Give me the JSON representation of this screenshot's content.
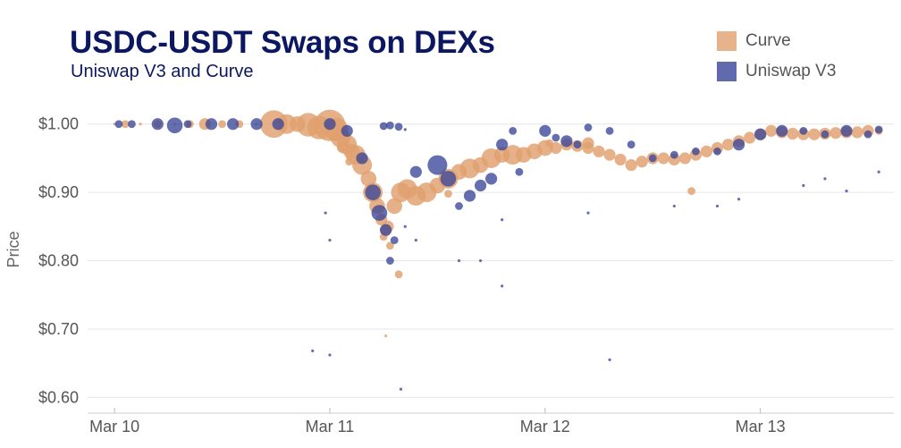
{
  "chart_data": {
    "type": "scatter",
    "title": "USDC-USDT Swaps on DEXs",
    "subtitle": "Uniswap V3 and Curve",
    "xlabel": "",
    "ylabel": "Price",
    "x_ticks": [
      "Mar 10",
      "Mar 11",
      "Mar 12",
      "Mar 13"
    ],
    "x_tick_days": [
      0,
      1,
      2,
      3
    ],
    "xlim_days": [
      -0.15,
      3.62
    ],
    "y_ticks": [
      1.0,
      0.9,
      0.8,
      0.7,
      0.6
    ],
    "y_tick_labels": [
      "$1.00",
      "$0.90",
      "$0.80",
      "$0.70",
      "$0.60"
    ],
    "ylim": [
      0.59,
      1.035
    ],
    "legend_position": "top-right",
    "grid": true,
    "series": [
      {
        "name": "Curve",
        "color": "#e0a06e",
        "points": [
          [
            0.0,
            1.0,
            1
          ],
          [
            0.05,
            1.0,
            2
          ],
          [
            0.12,
            1.0,
            1
          ],
          [
            0.2,
            1.0,
            2
          ],
          [
            0.28,
            1.0,
            1
          ],
          [
            0.35,
            1.0,
            2
          ],
          [
            0.42,
            1.0,
            3
          ],
          [
            0.5,
            1.0,
            2
          ],
          [
            0.58,
            1.0,
            2
          ],
          [
            0.66,
            1.0,
            1
          ],
          [
            0.74,
            1.0,
            7
          ],
          [
            0.8,
            1.0,
            5
          ],
          [
            0.85,
            1.0,
            4
          ],
          [
            0.9,
            0.999,
            6
          ],
          [
            0.95,
            0.995,
            6
          ],
          [
            1.0,
            0.998,
            8
          ],
          [
            1.03,
            0.992,
            6
          ],
          [
            1.05,
            0.98,
            5
          ],
          [
            1.08,
            0.97,
            5
          ],
          [
            1.1,
            0.96,
            4
          ],
          [
            1.12,
            0.955,
            5
          ],
          [
            1.15,
            0.94,
            5
          ],
          [
            1.18,
            0.92,
            4
          ],
          [
            1.2,
            0.9,
            5
          ],
          [
            1.22,
            0.88,
            4
          ],
          [
            1.24,
            0.86,
            3
          ],
          [
            1.26,
            0.845,
            3
          ],
          [
            1.28,
            0.822,
            2
          ],
          [
            1.3,
            0.88,
            4
          ],
          [
            1.33,
            0.9,
            5
          ],
          [
            1.36,
            0.905,
            5
          ],
          [
            1.4,
            0.895,
            5
          ],
          [
            1.45,
            0.9,
            5
          ],
          [
            1.5,
            0.91,
            4
          ],
          [
            1.55,
            0.92,
            5
          ],
          [
            1.6,
            0.93,
            4
          ],
          [
            1.65,
            0.935,
            5
          ],
          [
            1.7,
            0.94,
            4
          ],
          [
            1.75,
            0.95,
            5
          ],
          [
            1.8,
            0.955,
            4
          ],
          [
            1.85,
            0.955,
            5
          ],
          [
            1.9,
            0.955,
            4
          ],
          [
            1.95,
            0.96,
            4
          ],
          [
            2.0,
            0.965,
            4
          ],
          [
            2.05,
            0.965,
            3
          ],
          [
            2.1,
            0.97,
            3
          ],
          [
            2.15,
            0.968,
            3
          ],
          [
            2.2,
            0.965,
            3
          ],
          [
            2.25,
            0.96,
            3
          ],
          [
            2.3,
            0.955,
            3
          ],
          [
            2.35,
            0.948,
            3
          ],
          [
            2.4,
            0.94,
            3
          ],
          [
            2.45,
            0.945,
            3
          ],
          [
            2.5,
            0.95,
            3
          ],
          [
            2.55,
            0.95,
            3
          ],
          [
            2.6,
            0.948,
            3
          ],
          [
            2.65,
            0.95,
            3
          ],
          [
            2.7,
            0.955,
            3
          ],
          [
            2.75,
            0.96,
            3
          ],
          [
            2.8,
            0.965,
            3
          ],
          [
            2.85,
            0.97,
            3
          ],
          [
            2.9,
            0.975,
            3
          ],
          [
            2.95,
            0.98,
            3
          ],
          [
            3.0,
            0.985,
            3
          ],
          [
            3.05,
            0.99,
            3
          ],
          [
            3.1,
            0.988,
            3
          ],
          [
            3.15,
            0.986,
            3
          ],
          [
            3.2,
            0.985,
            3
          ],
          [
            3.25,
            0.985,
            3
          ],
          [
            3.3,
            0.986,
            3
          ],
          [
            3.35,
            0.987,
            3
          ],
          [
            3.4,
            0.988,
            3
          ],
          [
            3.45,
            0.988,
            3
          ],
          [
            3.5,
            0.99,
            3
          ],
          [
            3.55,
            0.99,
            2
          ],
          [
            1.32,
            0.78,
            2
          ],
          [
            1.27,
            0.85,
            3
          ],
          [
            1.25,
            0.835,
            2
          ],
          [
            2.68,
            0.902,
            2
          ],
          [
            1.06,
            0.966,
            3
          ],
          [
            1.09,
            0.945,
            2
          ],
          [
            1.55,
            0.898,
            2
          ],
          [
            2.02,
            0.972,
            2
          ],
          [
            2.2,
            0.972,
            3
          ],
          [
            1.26,
            0.69,
            1
          ]
        ]
      },
      {
        "name": "Uniswap V3",
        "color": "#3a4597",
        "points": [
          [
            0.02,
            1.0,
            2
          ],
          [
            0.08,
            1.0,
            2
          ],
          [
            0.2,
            1.0,
            3
          ],
          [
            0.28,
            0.998,
            4
          ],
          [
            0.34,
            1.0,
            2
          ],
          [
            0.45,
            1.0,
            3
          ],
          [
            0.55,
            1.0,
            3
          ],
          [
            0.66,
            1.0,
            3
          ],
          [
            0.76,
            1.0,
            3
          ],
          [
            1.0,
            1.0,
            3
          ],
          [
            1.08,
            0.99,
            3
          ],
          [
            1.15,
            0.95,
            3
          ],
          [
            1.2,
            0.9,
            4
          ],
          [
            1.23,
            0.87,
            4
          ],
          [
            1.26,
            0.845,
            3
          ],
          [
            1.28,
            0.8,
            2
          ],
          [
            1.3,
            0.83,
            2
          ],
          [
            1.25,
            0.997,
            2
          ],
          [
            1.28,
            0.998,
            2
          ],
          [
            1.32,
            0.996,
            2
          ],
          [
            1.35,
            0.992,
            1
          ],
          [
            1.4,
            0.93,
            3
          ],
          [
            1.5,
            0.94,
            5
          ],
          [
            1.55,
            0.92,
            4
          ],
          [
            1.6,
            0.88,
            2
          ],
          [
            1.65,
            0.895,
            3
          ],
          [
            1.7,
            0.91,
            3
          ],
          [
            1.75,
            0.92,
            3
          ],
          [
            1.8,
            0.97,
            3
          ],
          [
            1.85,
            0.99,
            2
          ],
          [
            1.88,
            0.93,
            2
          ],
          [
            2.0,
            0.99,
            3
          ],
          [
            2.05,
            0.98,
            2
          ],
          [
            2.1,
            0.975,
            3
          ],
          [
            2.15,
            0.97,
            2
          ],
          [
            2.2,
            0.995,
            2
          ],
          [
            2.3,
            0.99,
            2
          ],
          [
            2.4,
            0.97,
            2
          ],
          [
            2.5,
            0.95,
            2
          ],
          [
            2.6,
            0.955,
            2
          ],
          [
            2.7,
            0.96,
            2
          ],
          [
            2.8,
            0.96,
            2
          ],
          [
            2.9,
            0.97,
            3
          ],
          [
            3.0,
            0.985,
            3
          ],
          [
            3.1,
            0.99,
            3
          ],
          [
            3.2,
            0.99,
            2
          ],
          [
            3.3,
            0.985,
            2
          ],
          [
            3.4,
            0.99,
            3
          ],
          [
            3.5,
            0.985,
            2
          ],
          [
            3.55,
            0.992,
            2
          ],
          [
            1.35,
            0.85,
            1
          ],
          [
            1.4,
            0.83,
            1
          ],
          [
            1.6,
            0.8,
            1
          ],
          [
            1.7,
            0.8,
            1
          ],
          [
            1.8,
            0.763,
            1
          ],
          [
            2.3,
            0.655,
            1
          ],
          [
            1.33,
            0.612,
            1
          ],
          [
            0.92,
            0.668,
            1
          ],
          [
            1.0,
            0.662,
            1
          ],
          [
            1.0,
            0.83,
            1
          ],
          [
            0.98,
            0.87,
            1
          ],
          [
            1.8,
            0.86,
            1
          ],
          [
            2.2,
            0.87,
            1
          ],
          [
            2.8,
            0.88,
            1
          ],
          [
            3.2,
            0.91,
            1
          ],
          [
            3.4,
            0.902,
            1
          ],
          [
            3.55,
            0.93,
            1
          ],
          [
            2.9,
            0.89,
            1
          ],
          [
            3.3,
            0.92,
            1
          ],
          [
            2.6,
            0.88,
            1
          ]
        ]
      }
    ]
  }
}
